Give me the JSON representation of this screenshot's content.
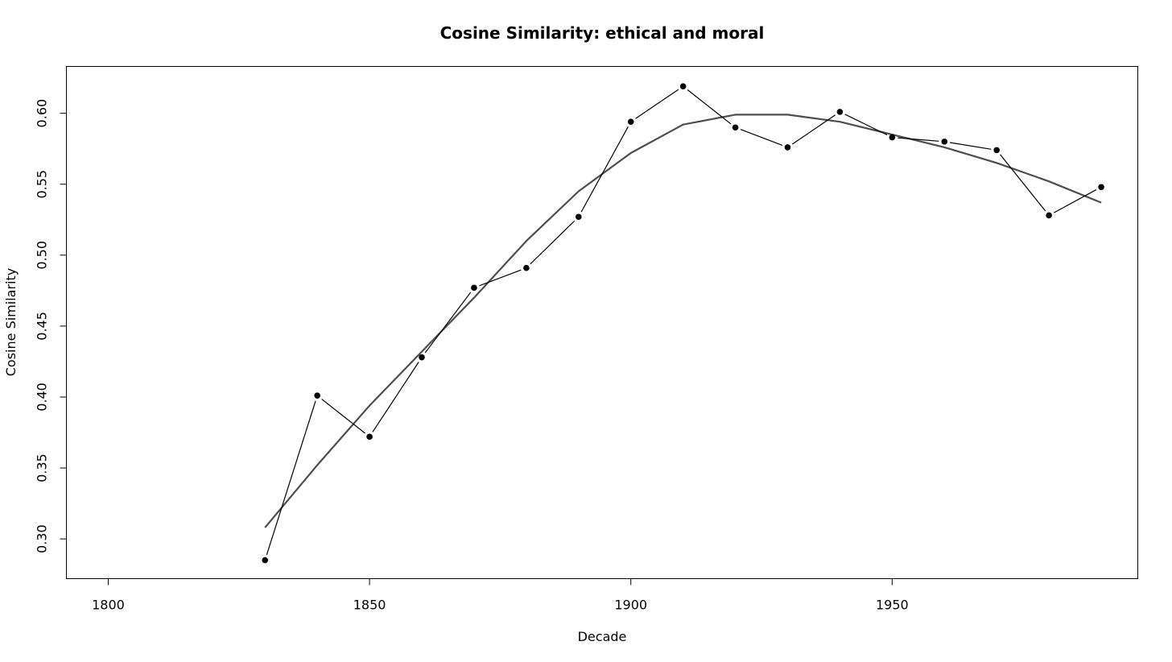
{
  "chart_data": {
    "type": "line",
    "title": "Cosine Similarity: ethical and moral",
    "xlabel": "Decade",
    "ylabel": "Cosine Similarity",
    "xlim": [
      1792,
      1997
    ],
    "ylim": [
      0.272,
      0.633
    ],
    "x_ticks": [
      1800,
      1850,
      1900,
      1950
    ],
    "y_ticks": [
      0.3,
      0.35,
      0.4,
      0.45,
      0.5,
      0.55,
      0.6
    ],
    "grid": false,
    "legend": "none",
    "series": [
      {
        "style": "points-and-lines",
        "color": "#000000",
        "x": [
          1830,
          1840,
          1850,
          1860,
          1870,
          1880,
          1890,
          1900,
          1910,
          1920,
          1930,
          1940,
          1950,
          1960,
          1970,
          1980,
          1990
        ],
        "values": [
          0.285,
          0.401,
          0.372,
          0.428,
          0.477,
          0.491,
          0.527,
          0.594,
          0.619,
          0.59,
          0.576,
          0.601,
          0.583,
          0.58,
          0.574,
          0.528,
          0.548
        ]
      },
      {
        "style": "smooth-line",
        "color": "#4d4d4d",
        "x": [
          1830,
          1840,
          1850,
          1860,
          1870,
          1880,
          1890,
          1900,
          1910,
          1920,
          1930,
          1940,
          1950,
          1960,
          1970,
          1980,
          1990
        ],
        "values": [
          0.308,
          0.352,
          0.394,
          0.432,
          0.47,
          0.51,
          0.545,
          0.572,
          0.592,
          0.599,
          0.599,
          0.594,
          0.585,
          0.576,
          0.565,
          0.552,
          0.537
        ]
      }
    ]
  }
}
